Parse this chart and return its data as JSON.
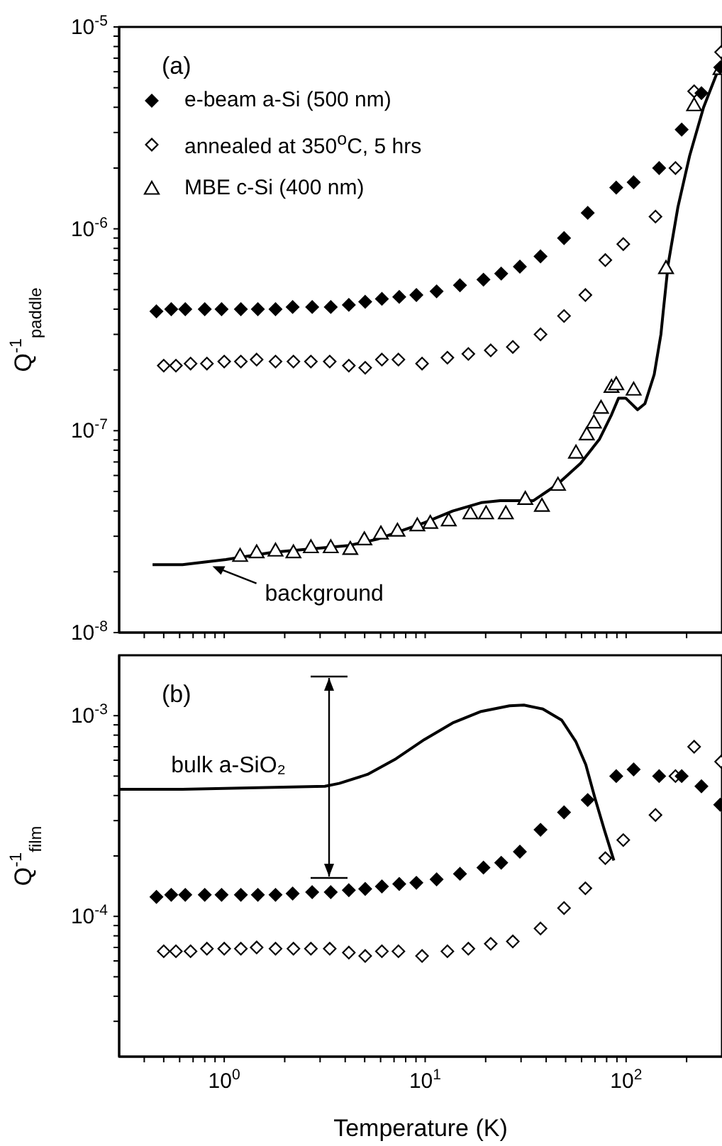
{
  "chart_data": [
    {
      "type": "scatter",
      "ylabel": "Q$^{-1}$$_{paddle}$",
      "xlim": [
        0.3,
        300
      ],
      "ylim": [
        1e-08,
        1e-05
      ],
      "log": "xy",
      "tick_labels": "y",
      "legend": "top left",
      "xticks": [
        {
          "value": 0.4,
          "label": null
        },
        {
          "value": 0.5,
          "label": null
        },
        {
          "value": 0.6,
          "label": null
        },
        {
          "value": 0.7,
          "label": null
        },
        {
          "value": 0.8,
          "label": null
        },
        {
          "value": 0.9,
          "label": null
        },
        {
          "value": 1,
          "label": null
        },
        {
          "value": 2,
          "label": null
        },
        {
          "value": 3,
          "label": null
        },
        {
          "value": 4,
          "label": null
        },
        {
          "value": 5,
          "label": null
        },
        {
          "value": 6,
          "label": null
        },
        {
          "value": 7,
          "label": null
        },
        {
          "value": 8,
          "label": null
        },
        {
          "value": 9,
          "label": null
        },
        {
          "value": 10,
          "label": null
        },
        {
          "value": 20,
          "label": null
        },
        {
          "value": 30,
          "label": null
        },
        {
          "value": 40,
          "label": null
        },
        {
          "value": 50,
          "label": null
        },
        {
          "value": 60,
          "label": null
        },
        {
          "value": 70,
          "label": null
        },
        {
          "value": 80,
          "label": null
        },
        {
          "value": 90,
          "label": null
        },
        {
          "value": 100,
          "label": null
        },
        {
          "value": 200,
          "label": null
        }
      ],
      "yticks": [
        {
          "value": 1e-08,
          "label": "10$^{-8}$"
        },
        {
          "value": 2e-08,
          "label": null
        },
        {
          "value": 3e-08,
          "label": null
        },
        {
          "value": 4e-08,
          "label": null
        },
        {
          "value": 5e-08,
          "label": null
        },
        {
          "value": 6e-08,
          "label": null
        },
        {
          "value": 7e-08,
          "label": null
        },
        {
          "value": 8e-08,
          "label": null
        },
        {
          "value": 9e-08,
          "label": null
        },
        {
          "value": 1e-07,
          "label": "10$^{-7}$"
        },
        {
          "value": 2e-07,
          "label": null
        },
        {
          "value": 3e-07,
          "label": null
        },
        {
          "value": 4e-07,
          "label": null
        },
        {
          "value": 5e-07,
          "label": null
        },
        {
          "value": 6e-07,
          "label": null
        },
        {
          "value": 7e-07,
          "label": null
        },
        {
          "value": 8e-07,
          "label": null
        },
        {
          "value": 9e-07,
          "label": null
        },
        {
          "value": 1e-06,
          "label": "10$^{-6}$"
        },
        {
          "value": 2e-06,
          "label": null
        },
        {
          "value": 3e-06,
          "label": null
        },
        {
          "value": 4e-06,
          "label": null
        },
        {
          "value": 5e-06,
          "label": null
        },
        {
          "value": 6e-06,
          "label": null
        },
        {
          "value": 7e-06,
          "label": null
        },
        {
          "value": 8e-06,
          "label": null
        },
        {
          "value": 9e-06,
          "label": null
        },
        {
          "value": 1e-05,
          "label": "10$^{-5}$"
        }
      ],
      "annotations": [
        "(a)",
        {
          "text": "background",
          "x": 0.86,
          "y": 2.2e-08
        }
      ],
      "series": [
        {
          "type": "scatter",
          "name": "e-beam a-Si (500 nm)",
          "color": "#000000",
          "marker": "diamond",
          "x": [
            0.46,
            0.545,
            0.64,
            0.8,
            0.97,
            1.21,
            1.47,
            1.8,
            2.19,
            2.74,
            3.39,
            4.17,
            5.03,
            6.09,
            7.43,
            9.04,
            11.4,
            14.9,
            19.5,
            23.9,
            29.6,
            37.5,
            49.1,
            64.4,
            89.3,
            109,
            146,
            189,
            237,
            294
          ],
          "values": [
            3.9e-07,
            4e-07,
            4e-07,
            4e-07,
            4e-07,
            4e-07,
            4e-07,
            4e-07,
            4.1e-07,
            4.1e-07,
            4.1e-07,
            4.2e-07,
            4.35e-07,
            4.5e-07,
            4.6e-07,
            4.7e-07,
            4.9e-07,
            5.25e-07,
            5.6e-07,
            6e-07,
            6.5e-07,
            7.3e-07,
            9e-07,
            1.2e-06,
            1.6e-06,
            1.7e-06,
            2e-06,
            3.1e-06,
            4.7e-06,
            6.3e-06
          ]
        },
        {
          "type": "scatter",
          "name": "annealed at 350$^{o}$C, 5 hrs",
          "color": "#000000",
          "marker": "diamond",
          "x": [
            0.5,
            0.575,
            0.68,
            0.82,
            1.0,
            1.21,
            1.45,
            1.8,
            2.21,
            2.7,
            3.35,
            4.17,
            5.03,
            6.09,
            7.36,
            9.65,
            12.9,
            16.4,
            21.2,
            27.3,
            37.5,
            49.1,
            62.7,
            78.8,
            96.8,
            140,
            176,
            218,
            297
          ],
          "values": [
            2.1e-07,
            2.1e-07,
            2.15e-07,
            2.15e-07,
            2.2e-07,
            2.2e-07,
            2.25e-07,
            2.2e-07,
            2.2e-07,
            2.2e-07,
            2.2e-07,
            2.1e-07,
            2.05e-07,
            2.25e-07,
            2.25e-07,
            2.15e-07,
            2.3e-07,
            2.4e-07,
            2.5e-07,
            2.6e-07,
            3e-07,
            3.7e-07,
            4.7e-07,
            7e-07,
            8.4e-07,
            1.15e-06,
            2e-06,
            4.8e-06,
            7.5e-06
          ]
        },
        {
          "type": "scatter",
          "name": "MBE c-Si (400 nm)",
          "color": "#000000",
          "marker": "triangle",
          "x": [
            1.2,
            1.45,
            1.8,
            2.21,
            2.7,
            3.39,
            4.24,
            4.98,
            6.02,
            7.28,
            9.14,
            10.6,
            13.1,
            16.8,
            20.1,
            25.2,
            31.5,
            38.1,
            45.8,
            56.3,
            63.7,
            69.1,
            75,
            84.6,
            89.3,
            109,
            158,
            218,
            295
          ],
          "values": [
            2.4e-08,
            2.5e-08,
            2.55e-08,
            2.5e-08,
            2.65e-08,
            2.65e-08,
            2.6e-08,
            2.9e-08,
            3.1e-08,
            3.2e-08,
            3.4e-08,
            3.5e-08,
            3.6e-08,
            3.9e-08,
            3.9e-08,
            3.9e-08,
            4.6e-08,
            4.25e-08,
            5.4e-08,
            7.8e-08,
            9.6e-08,
            1.1e-07,
            1.3e-07,
            1.65e-07,
            1.7e-07,
            1.6e-07,
            6.4e-07,
            4.1e-06,
            6.2e-06
          ]
        },
        {
          "type": "line",
          "color": "#000000",
          "x": [
            0.44,
            0.62,
            1.02,
            1.75,
            4.17,
            5.77,
            9.9,
            13.7,
            19.0,
            23.6,
            34.5,
            45.3,
            59.4,
            73.8,
            84.6,
            91.7,
            99.5,
            114,
            124,
            138,
            149,
            153,
            162,
            181,
            207,
            243,
            294
          ],
          "values": [
            2.17e-08,
            2.17e-08,
            2.3e-08,
            2.5e-08,
            2.7e-08,
            2.9e-08,
            3.5e-08,
            4e-08,
            4.4e-08,
            4.5e-08,
            4.5e-08,
            5.4e-08,
            6.9e-08,
            9.1e-08,
            1.2e-07,
            1.45e-07,
            1.45e-07,
            1.27e-07,
            1.36e-07,
            1.9e-07,
            3e-07,
            3.9e-07,
            6.7e-07,
            1.28e-06,
            2.3e-06,
            4e-06,
            6.5e-06
          ]
        }
      ]
    },
    {
      "type": "scatter",
      "xlabel": "Temperature (K)",
      "ylabel": "Q$^{-1}$$_{film}$",
      "xlim": [
        0.3,
        300
      ],
      "ylim": [
        2e-05,
        0.002
      ],
      "log": "xy",
      "xticks": [
        {
          "value": 0.4,
          "label": null
        },
        {
          "value": 0.5,
          "label": null
        },
        {
          "value": 0.6,
          "label": null
        },
        {
          "value": 0.7,
          "label": null
        },
        {
          "value": 0.8,
          "label": null
        },
        {
          "value": 0.9,
          "label": null
        },
        {
          "value": 1,
          "label": "10$^{0}$"
        },
        {
          "value": 2,
          "label": null
        },
        {
          "value": 3,
          "label": null
        },
        {
          "value": 4,
          "label": null
        },
        {
          "value": 5,
          "label": null
        },
        {
          "value": 6,
          "label": null
        },
        {
          "value": 7,
          "label": null
        },
        {
          "value": 8,
          "label": null
        },
        {
          "value": 9,
          "label": null
        },
        {
          "value": 10,
          "label": "10$^{1}$"
        },
        {
          "value": 20,
          "label": null
        },
        {
          "value": 30,
          "label": null
        },
        {
          "value": 40,
          "label": null
        },
        {
          "value": 50,
          "label": null
        },
        {
          "value": 60,
          "label": null
        },
        {
          "value": 70,
          "label": null
        },
        {
          "value": 80,
          "label": null
        },
        {
          "value": 90,
          "label": null
        },
        {
          "value": 100,
          "label": "10$^{2}$"
        },
        {
          "value": 200,
          "label": null
        }
      ],
      "yticks": [
        {
          "value": 3e-05,
          "label": null
        },
        {
          "value": 4e-05,
          "label": null
        },
        {
          "value": 5e-05,
          "label": null
        },
        {
          "value": 6e-05,
          "label": null
        },
        {
          "value": 7e-05,
          "label": null
        },
        {
          "value": 8e-05,
          "label": null
        },
        {
          "value": 9e-05,
          "label": null
        },
        {
          "value": 0.0001,
          "label": "10$^{-4}$"
        },
        {
          "value": 0.0002,
          "label": null
        },
        {
          "value": 0.0003,
          "label": null
        },
        {
          "value": 0.0004,
          "label": null
        },
        {
          "value": 0.0005,
          "label": null
        },
        {
          "value": 0.0006,
          "label": null
        },
        {
          "value": 0.0007,
          "label": null
        },
        {
          "value": 0.0008,
          "label": null
        },
        {
          "value": 0.0009,
          "label": null
        },
        {
          "value": 0.001,
          "label": "10$^{-3}$"
        }
      ],
      "annotations": [
        "(b)",
        {
          "text": "bulk a-SiO₂",
          "x": 1.05,
          "y": 0.00043
        }
      ],
      "series": [
        {
          "type": "scatter",
          "color": "#000000",
          "marker": "diamond",
          "x": [
            0.46,
            0.545,
            0.64,
            0.8,
            0.97,
            1.21,
            1.47,
            1.8,
            2.19,
            2.74,
            3.39,
            4.17,
            5.03,
            6.09,
            7.43,
            9.04,
            11.4,
            14.9,
            19.5,
            23.9,
            29.6,
            37.5,
            49.1,
            64.4,
            89.3,
            109,
            146,
            189,
            237,
            294
          ],
          "values": [
            0.000125,
            0.000128,
            0.000128,
            0.000128,
            0.000128,
            0.000128,
            0.000128,
            0.000128,
            0.00013,
            0.000132,
            0.000132,
            0.000135,
            0.000137,
            0.000141,
            0.000145,
            0.000147,
            0.000153,
            0.000163,
            0.000175,
            0.000185,
            0.00021,
            0.00027,
            0.00033,
            0.00038,
            0.0005,
            0.00054,
            0.0005,
            0.0005,
            0.000445,
            0.00036
          ]
        },
        {
          "type": "scatter",
          "color": "#000000",
          "marker": "diamond",
          "x": [
            0.5,
            0.575,
            0.68,
            0.82,
            1.0,
            1.21,
            1.45,
            1.8,
            2.21,
            2.7,
            3.35,
            4.17,
            5.03,
            6.09,
            7.36,
            9.65,
            12.9,
            16.4,
            21.2,
            27.3,
            37.5,
            49.1,
            62.7,
            78.8,
            96.8,
            140,
            176,
            218,
            297
          ],
          "values": [
            6.7e-05,
            6.7e-05,
            6.7e-05,
            6.9e-05,
            6.9e-05,
            6.9e-05,
            7e-05,
            6.9e-05,
            6.9e-05,
            6.9e-05,
            6.9e-05,
            6.6e-05,
            6.35e-05,
            6.7e-05,
            6.7e-05,
            6.35e-05,
            6.7e-05,
            6.9e-05,
            7.3e-05,
            7.5e-05,
            8.7e-05,
            0.00011,
            0.000138,
            0.000195,
            0.00024,
            0.00032,
            0.0005,
            0.0007,
            0.00059
          ]
        },
        {
          "type": "line",
          "color": "#000000",
          "x": [
            0.3,
            0.62,
            3.17,
            3.74,
            5.17,
            7.16,
            9.9,
            13.7,
            19.0,
            26.3,
            31.0,
            38.5,
            47.8,
            56.3,
            63,
            69.9,
            77.9,
            86.9
          ],
          "values": [
            0.00043,
            0.00043,
            0.000445,
            0.00046,
            0.00051,
            0.00061,
            0.00076,
            0.00092,
            0.00105,
            0.00112,
            0.00113,
            0.00108,
            0.00095,
            0.00074,
            0.00057,
            0.00039,
            0.00027,
            0.00019
          ]
        }
      ]
    }
  ]
}
